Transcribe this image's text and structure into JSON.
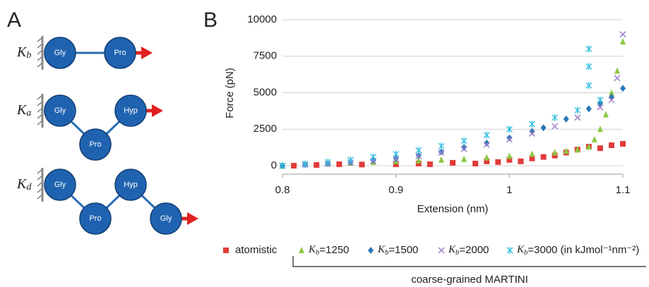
{
  "panel_a": {
    "label": "A",
    "rows": [
      {
        "constant": "Kb",
        "nodes": [
          "Gly",
          "Pro"
        ]
      },
      {
        "constant": "Ka",
        "nodes": [
          "Gly",
          "Pro",
          "Hyp"
        ]
      },
      {
        "constant": "Kd",
        "nodes": [
          "Gly",
          "Pro",
          "Hyp",
          "Gly"
        ]
      }
    ]
  },
  "chart_data": {
    "type": "scatter",
    "panel_label": "B",
    "x_label": "Extension (nm)",
    "y_label": "Force (pN)",
    "xlim": [
      0.8,
      1.1
    ],
    "ylim": [
      0,
      10000
    ],
    "xticks": [
      0.8,
      0.9,
      1,
      1.1
    ],
    "yticks": [
      0,
      2500,
      5000,
      7500,
      10000
    ],
    "grid": true,
    "group_label": "coarse-grained MARTINI",
    "series": [
      {
        "name": "atomistic",
        "color": "#e23b3b",
        "marker": "square",
        "x": [
          0.81,
          0.83,
          0.85,
          0.87,
          0.9,
          0.92,
          0.93,
          0.95,
          0.97,
          0.98,
          0.99,
          1.0,
          1.01,
          1.02,
          1.03,
          1.04,
          1.05,
          1.06,
          1.07,
          1.08,
          1.09,
          1.1
        ],
        "values": [
          0,
          50,
          100,
          80,
          100,
          150,
          100,
          200,
          150,
          300,
          250,
          400,
          300,
          500,
          600,
          700,
          900,
          1100,
          1300,
          1200,
          1400,
          1500
        ]
      },
      {
        "name": "Kb=1250",
        "color": "#8cc63f",
        "marker": "triangle",
        "x": [
          0.8,
          0.82,
          0.84,
          0.86,
          0.88,
          0.9,
          0.92,
          0.94,
          0.96,
          0.98,
          1.0,
          1.02,
          1.04,
          1.05,
          1.06,
          1.07,
          1.075,
          1.08,
          1.085,
          1.09,
          1.095,
          1.1
        ],
        "values": [
          0,
          100,
          150,
          200,
          250,
          300,
          350,
          400,
          450,
          550,
          650,
          800,
          900,
          1000,
          1100,
          1300,
          1800,
          2500,
          3500,
          5000,
          6500,
          8500
        ]
      },
      {
        "name": "Kb=1500",
        "color": "#2a78b8",
        "marker": "diamond",
        "x": [
          0.8,
          0.82,
          0.84,
          0.86,
          0.88,
          0.9,
          0.92,
          0.94,
          0.96,
          0.98,
          1.0,
          1.02,
          1.03,
          1.05,
          1.07,
          1.08,
          1.09,
          1.1
        ],
        "values": [
          0,
          80,
          150,
          250,
          380,
          500,
          700,
          950,
          1250,
          1550,
          1900,
          2350,
          2600,
          3200,
          3900,
          4300,
          4700,
          5300
        ]
      },
      {
        "name": "Kb=2000",
        "color": "#9d80cc",
        "marker": "cross",
        "x": [
          0.8,
          0.82,
          0.84,
          0.86,
          0.88,
          0.9,
          0.92,
          0.94,
          0.96,
          0.98,
          1.0,
          1.02,
          1.04,
          1.06,
          1.08,
          1.09,
          1.095,
          1.1
        ],
        "values": [
          0,
          60,
          120,
          220,
          330,
          450,
          650,
          900,
          1150,
          1450,
          1800,
          2200,
          2700,
          3300,
          4000,
          4500,
          6000,
          9000
        ]
      },
      {
        "name": "Kb=3000 (in kJmol⁻¹nm⁻²)",
        "color": "#2cbde0",
        "marker": "asterisk",
        "x": [
          0.8,
          0.82,
          0.84,
          0.86,
          0.88,
          0.9,
          0.92,
          0.94,
          0.96,
          0.98,
          1.0,
          1.02,
          1.04,
          1.06,
          1.07,
          1.07,
          1.07,
          1.08
        ],
        "values": [
          0,
          120,
          250,
          400,
          600,
          800,
          1050,
          1350,
          1700,
          2100,
          2500,
          2850,
          3300,
          3800,
          5500,
          6800,
          8000,
          4500
        ]
      }
    ]
  }
}
